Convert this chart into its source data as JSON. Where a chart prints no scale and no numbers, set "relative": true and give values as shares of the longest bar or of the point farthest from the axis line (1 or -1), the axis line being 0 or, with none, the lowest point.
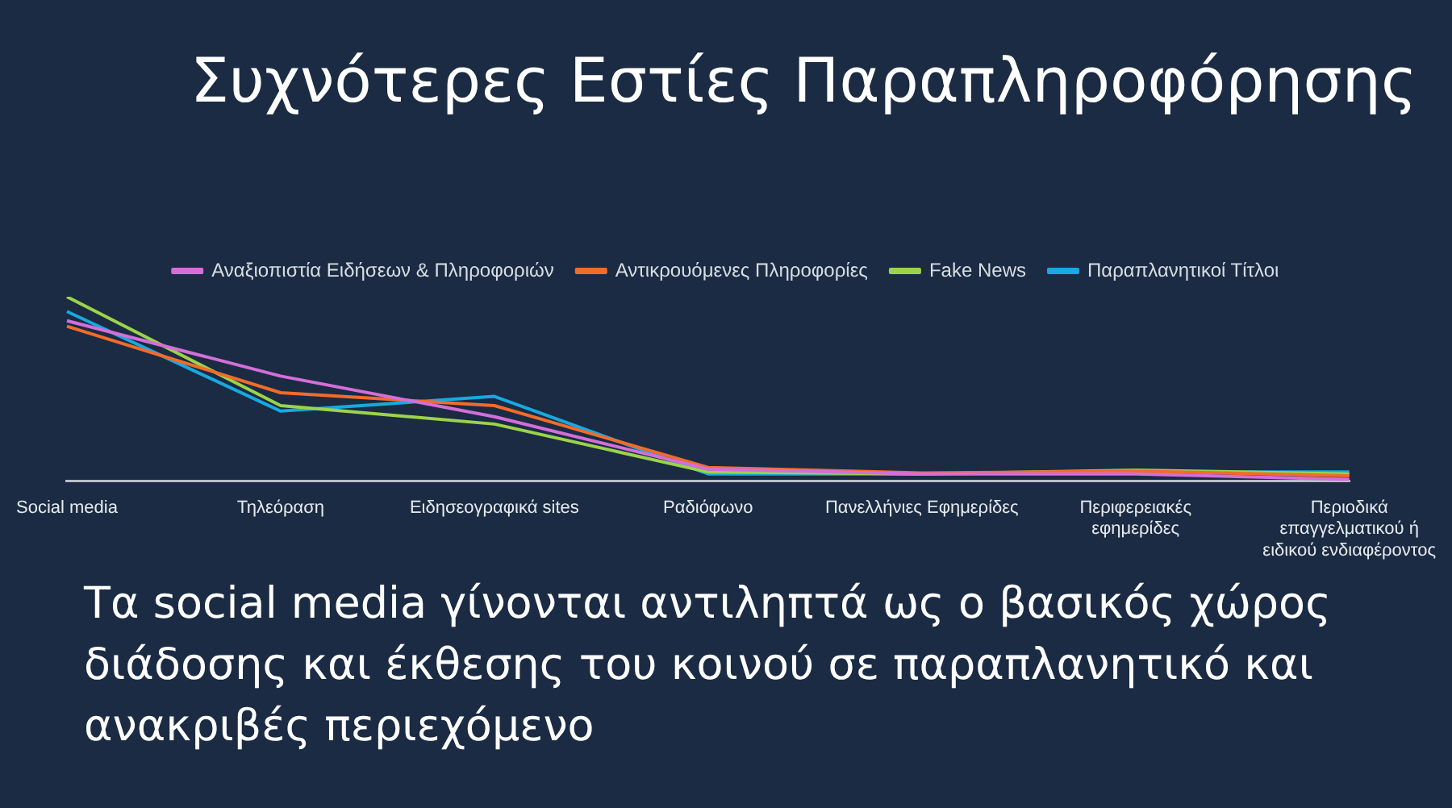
{
  "chart_data": {
    "type": "line",
    "title": "Συχνότερες Εστίες Παραπληροφόρησης",
    "relative": true,
    "legend": "top",
    "grid": false,
    "marker": "none",
    "categories": [
      "Social media",
      "Τηλεόραση",
      "Ειδησεογραφικά sites",
      "Ραδιόφωνο",
      "Πανελλήνιες Εφημερίδες",
      "Περιφερειακές εφημερίδες",
      "Περιοδικά επαγγελματικού ή ειδικού ενδιαφέροντος"
    ],
    "series": [
      {
        "name": "Αναξιοπιστία Ειδήσεων & Πληροφοριών",
        "color": "#d46ed8",
        "values": [
          0.87,
          0.57,
          0.35,
          0.066,
          0.04,
          0.04,
          0.01
        ]
      },
      {
        "name": "Αντικρουόμενες Πληροφορίες",
        "color": "#f26b2b",
        "values": [
          0.84,
          0.48,
          0.41,
          0.075,
          0.045,
          0.055,
          0.03
        ]
      },
      {
        "name": "Fake News",
        "color": "#9bd34a",
        "values": [
          1,
          0.41,
          0.31,
          0.05,
          0.04,
          0.06,
          0.04
        ]
      },
      {
        "name": "Παραπλανητικοί Τίτλοι",
        "color": "#17a9e0",
        "values": [
          0.92,
          0.38,
          0.46,
          0.04,
          0.04,
          0.05,
          0.05
        ]
      }
    ],
    "annotations": [
      "Τα social media γίνονται αντιληπτά ως ο βασικός χώρος διάδοσης και έκθεσης του κοινού σε παραπλανητικό και ανακριβές περιεχόμενο"
    ]
  }
}
